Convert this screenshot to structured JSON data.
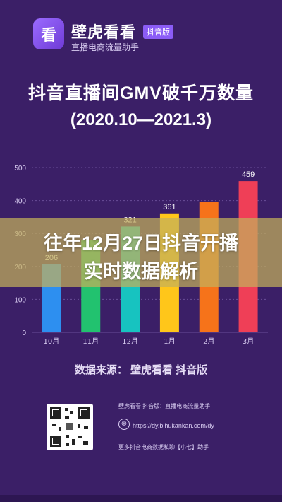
{
  "header": {
    "logo_glyph": "看",
    "brand_name": "壁虎看看",
    "brand_tag": "抖音版",
    "brand_sub": "直播电商流量助手"
  },
  "banner": {
    "line1": "往年12月27日抖音开播",
    "line2": "实时数据解析"
  },
  "source_text": "数据来源： 壁虎看看 抖音版",
  "footer": {
    "title": "壁虎看看 抖音版：直播电商流量助手",
    "url": "https://dy.bihukankan.com/dy",
    "more": "更多抖音电商数据私聊【小七】助手"
  },
  "chart_data": {
    "type": "bar",
    "title": "抖音直播间GMV破千万数量",
    "subtitle": "(2020.10—2021.3)",
    "categories": [
      "10月",
      "11月",
      "12月",
      "1月",
      "2月",
      "3月"
    ],
    "values": [
      206,
      280,
      321,
      361,
      395,
      459
    ],
    "labels": [
      "206",
      "",
      "321",
      "361",
      "",
      "459"
    ],
    "colors": [
      "#2d8ff0",
      "#22c26f",
      "#17c3c0",
      "#ffc61a",
      "#f6731a",
      "#ef3f57"
    ],
    "yticks": [
      0,
      100,
      200,
      300,
      400,
      500
    ],
    "ylim": [
      0,
      500
    ],
    "grid": true
  }
}
